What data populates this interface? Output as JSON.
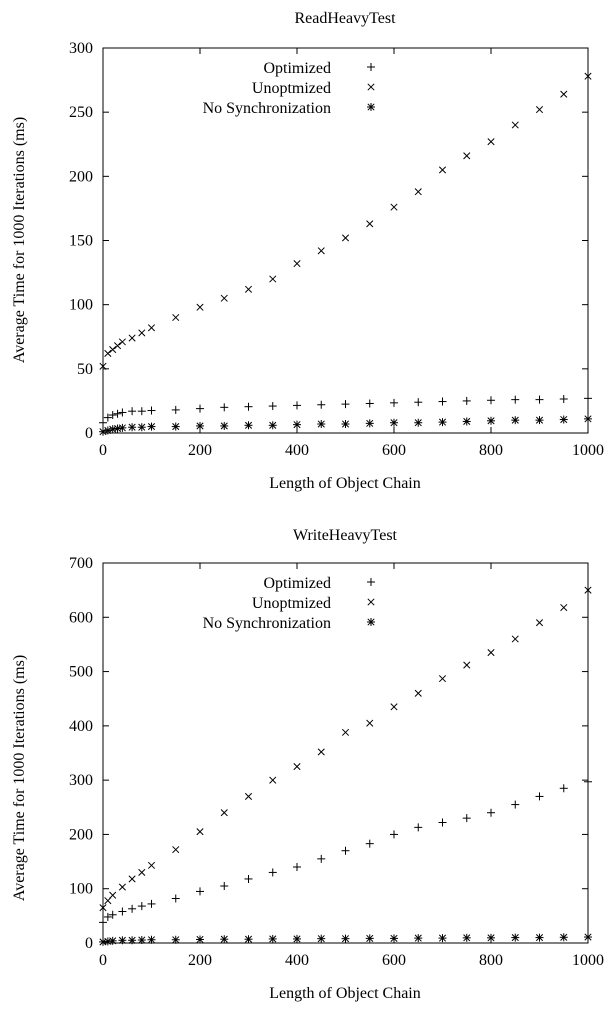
{
  "chart_data": [
    {
      "type": "scatter",
      "title": "ReadHeavyTest",
      "xlabel": "Length of Object Chain",
      "ylabel": "Average Time for 1000 Iterations (ms)",
      "xlim": [
        0,
        1000
      ],
      "ylim": [
        0,
        300
      ],
      "xticks": [
        0,
        200,
        400,
        600,
        800,
        1000
      ],
      "yticks": [
        0,
        50,
        100,
        150,
        200,
        250,
        300
      ],
      "grid": false,
      "legend_position": "top-right",
      "series": [
        {
          "name": "Optimized",
          "marker": "plus",
          "points": [
            [
              0,
              8
            ],
            [
              10,
              12
            ],
            [
              20,
              14
            ],
            [
              30,
              15
            ],
            [
              40,
              16
            ],
            [
              60,
              17
            ],
            [
              80,
              17
            ],
            [
              100,
              17.5
            ],
            [
              150,
              18
            ],
            [
              200,
              19
            ],
            [
              250,
              20
            ],
            [
              300,
              20.5
            ],
            [
              350,
              21
            ],
            [
              400,
              21.5
            ],
            [
              450,
              22
            ],
            [
              500,
              22.5
            ],
            [
              550,
              23
            ],
            [
              600,
              23.5
            ],
            [
              650,
              24
            ],
            [
              700,
              24.5
            ],
            [
              750,
              25
            ],
            [
              800,
              25.5
            ],
            [
              850,
              26
            ],
            [
              900,
              26
            ],
            [
              950,
              26.5
            ],
            [
              1000,
              27
            ]
          ]
        },
        {
          "name": "Unoptmized",
          "marker": "cross",
          "points": [
            [
              0,
              52
            ],
            [
              10,
              62
            ],
            [
              20,
              65
            ],
            [
              30,
              68
            ],
            [
              40,
              71
            ],
            [
              60,
              74
            ],
            [
              80,
              78
            ],
            [
              100,
              82
            ],
            [
              150,
              90
            ],
            [
              200,
              98
            ],
            [
              250,
              105
            ],
            [
              300,
              112
            ],
            [
              350,
              120
            ],
            [
              400,
              132
            ],
            [
              450,
              142
            ],
            [
              500,
              152
            ],
            [
              550,
              163
            ],
            [
              600,
              176
            ],
            [
              650,
              188
            ],
            [
              700,
              205
            ],
            [
              750,
              216
            ],
            [
              800,
              227
            ],
            [
              850,
              240
            ],
            [
              900,
              252
            ],
            [
              950,
              264
            ],
            [
              1000,
              278
            ]
          ]
        },
        {
          "name": "No Synchronization",
          "marker": "star",
          "points": [
            [
              0,
              1
            ],
            [
              10,
              2
            ],
            [
              20,
              3
            ],
            [
              30,
              3.5
            ],
            [
              40,
              4
            ],
            [
              60,
              4.5
            ],
            [
              80,
              4.5
            ],
            [
              100,
              5
            ],
            [
              150,
              5
            ],
            [
              200,
              5.5
            ],
            [
              250,
              5.5
            ],
            [
              300,
              6
            ],
            [
              350,
              6
            ],
            [
              400,
              6.5
            ],
            [
              450,
              7
            ],
            [
              500,
              7
            ],
            [
              550,
              7.5
            ],
            [
              600,
              8
            ],
            [
              650,
              8
            ],
            [
              700,
              8.5
            ],
            [
              750,
              9
            ],
            [
              800,
              9.5
            ],
            [
              850,
              10
            ],
            [
              900,
              10
            ],
            [
              950,
              10.5
            ],
            [
              1000,
              11
            ]
          ]
        }
      ]
    },
    {
      "type": "scatter",
      "title": "WriteHeavyTest",
      "xlabel": "Length of Object Chain",
      "ylabel": "Average Time for 1000 Iterations (ms)",
      "xlim": [
        0,
        1000
      ],
      "ylim": [
        0,
        700
      ],
      "xticks": [
        0,
        200,
        400,
        600,
        800,
        1000
      ],
      "yticks": [
        0,
        100,
        200,
        300,
        400,
        500,
        600,
        700
      ],
      "grid": false,
      "legend_position": "top-right",
      "series": [
        {
          "name": "Optimized",
          "marker": "plus",
          "points": [
            [
              0,
              38
            ],
            [
              10,
              48
            ],
            [
              20,
              52
            ],
            [
              40,
              58
            ],
            [
              60,
              63
            ],
            [
              80,
              68
            ],
            [
              100,
              72
            ],
            [
              150,
              82
            ],
            [
              200,
              95
            ],
            [
              250,
              105
            ],
            [
              300,
              118
            ],
            [
              350,
              130
            ],
            [
              400,
              140
            ],
            [
              450,
              155
            ],
            [
              500,
              170
            ],
            [
              550,
              183
            ],
            [
              600,
              200
            ],
            [
              650,
              213
            ],
            [
              700,
              222
            ],
            [
              750,
              230
            ],
            [
              800,
              240
            ],
            [
              850,
              255
            ],
            [
              900,
              270
            ],
            [
              950,
              285
            ],
            [
              1000,
              297
            ]
          ]
        },
        {
          "name": "Unoptmized",
          "marker": "cross",
          "points": [
            [
              0,
              65
            ],
            [
              10,
              78
            ],
            [
              20,
              88
            ],
            [
              40,
              103
            ],
            [
              60,
              118
            ],
            [
              80,
              130
            ],
            [
              100,
              143
            ],
            [
              150,
              172
            ],
            [
              200,
              205
            ],
            [
              250,
              240
            ],
            [
              300,
              270
            ],
            [
              350,
              300
            ],
            [
              400,
              325
            ],
            [
              450,
              352
            ],
            [
              500,
              388
            ],
            [
              550,
              405
            ],
            [
              600,
              435
            ],
            [
              650,
              460
            ],
            [
              700,
              487
            ],
            [
              750,
              512
            ],
            [
              800,
              535
            ],
            [
              850,
              560
            ],
            [
              900,
              590
            ],
            [
              950,
              618
            ],
            [
              1000,
              650
            ]
          ]
        },
        {
          "name": "No Synchronization",
          "marker": "star",
          "points": [
            [
              0,
              2
            ],
            [
              10,
              3
            ],
            [
              20,
              4
            ],
            [
              40,
              5
            ],
            [
              60,
              5
            ],
            [
              80,
              5.5
            ],
            [
              100,
              6
            ],
            [
              150,
              6
            ],
            [
              200,
              6.5
            ],
            [
              250,
              7
            ],
            [
              300,
              7
            ],
            [
              350,
              7.5
            ],
            [
              400,
              7.5
            ],
            [
              450,
              8
            ],
            [
              500,
              8
            ],
            [
              550,
              8.5
            ],
            [
              600,
              8.5
            ],
            [
              650,
              9
            ],
            [
              700,
              9
            ],
            [
              750,
              9.5
            ],
            [
              800,
              9.5
            ],
            [
              850,
              10
            ],
            [
              900,
              10
            ],
            [
              950,
              10.5
            ],
            [
              1000,
              11
            ]
          ]
        }
      ]
    }
  ]
}
